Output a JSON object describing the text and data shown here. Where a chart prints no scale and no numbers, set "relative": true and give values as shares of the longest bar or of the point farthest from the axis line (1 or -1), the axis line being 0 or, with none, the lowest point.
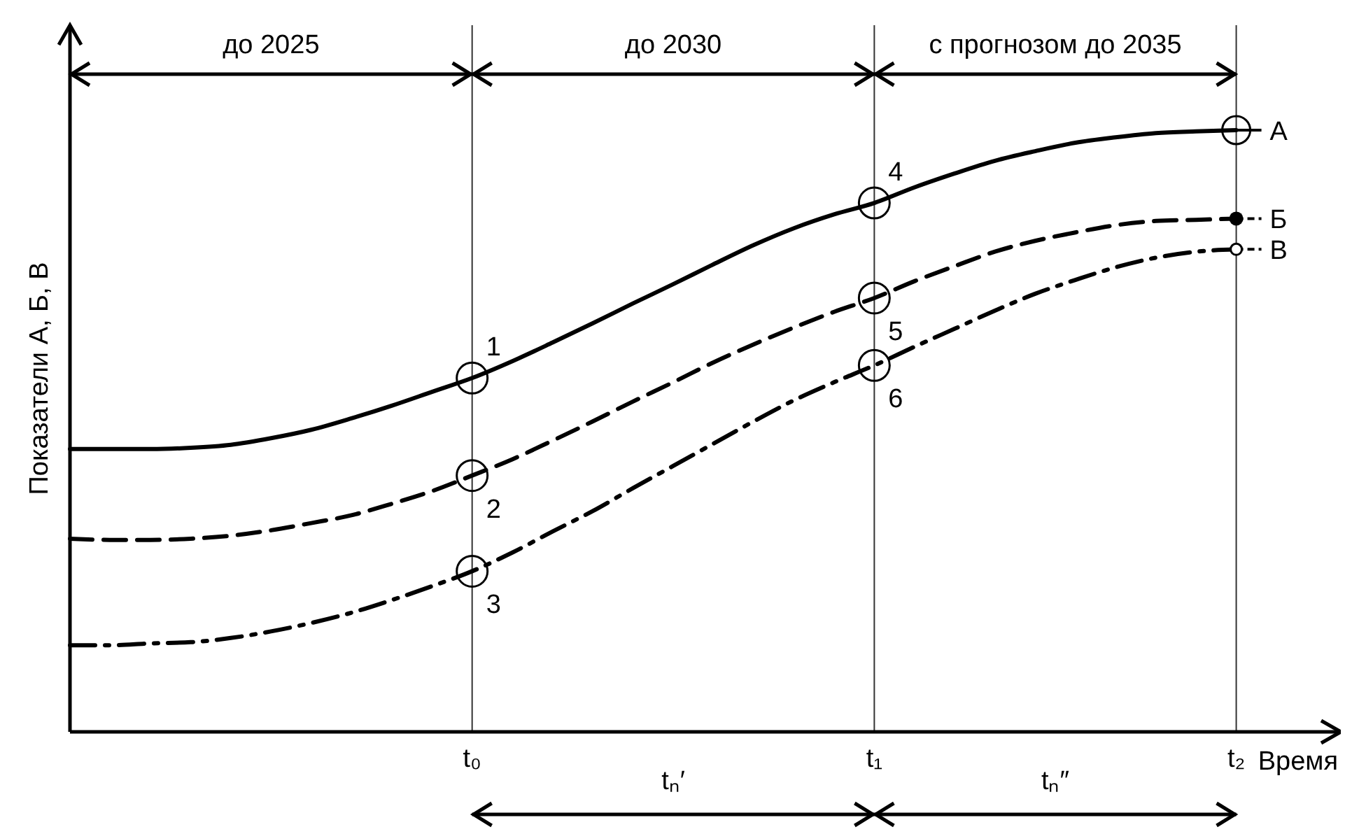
{
  "chart_data": {
    "type": "line",
    "relative": true,
    "legend": "right",
    "xlabel": "Время",
    "ylabel": "Показатели А, Б, В",
    "categories": [
      null,
      null,
      null,
      null,
      null,
      null,
      null,
      null,
      null,
      null,
      "t₀",
      null,
      null,
      null,
      null,
      null,
      null,
      null,
      null,
      null,
      "t₁",
      null,
      null,
      null,
      null,
      null,
      null,
      null,
      null,
      "t₂"
    ],
    "series": [
      {
        "name": "А",
        "color": "#000000",
        "line_style": "solid",
        "values": [
          0.47,
          0.47,
          0.47,
          0.472,
          0.477,
          0.488,
          0.502,
          0.521,
          0.542,
          0.565,
          0.588,
          0.616,
          0.647,
          0.679,
          0.712,
          0.744,
          0.777,
          0.809,
          0.837,
          0.86,
          0.879,
          0.905,
          0.928,
          0.949,
          0.965,
          0.979,
          0.988,
          0.995,
          0.998,
          1
        ]
      },
      {
        "name": "Б",
        "color": "#000000",
        "line_style": "dashed",
        "values": [
          0.321,
          0.319,
          0.319,
          0.321,
          0.326,
          0.335,
          0.347,
          0.36,
          0.379,
          0.4,
          0.426,
          0.453,
          0.484,
          0.516,
          0.549,
          0.581,
          0.614,
          0.644,
          0.672,
          0.698,
          0.721,
          0.749,
          0.774,
          0.798,
          0.816,
          0.83,
          0.842,
          0.849,
          0.851,
          0.853
        ]
      },
      {
        "name": "В",
        "color": "#000000",
        "line_style": "dashdot",
        "values": [
          0.144,
          0.144,
          0.147,
          0.149,
          0.156,
          0.167,
          0.181,
          0.198,
          0.219,
          0.242,
          0.267,
          0.298,
          0.333,
          0.367,
          0.405,
          0.442,
          0.479,
          0.516,
          0.551,
          0.581,
          0.609,
          0.64,
          0.67,
          0.7,
          0.728,
          0.751,
          0.772,
          0.788,
          0.798,
          0.802
        ]
      }
    ],
    "ref_lines": [
      {
        "axis": "x",
        "value": "t₀"
      },
      {
        "axis": "x",
        "value": "t₁"
      },
      {
        "axis": "x",
        "value": "t₂"
      }
    ],
    "annotations": [
      "до 2025",
      "до 2030",
      "с прогнозом до 2035",
      "tₙ′",
      "tₙ″",
      {
        "text": "1",
        "x": "t₀",
        "y": 0.588
      },
      {
        "text": "2",
        "x": "t₀",
        "y": 0.426
      },
      {
        "text": "3",
        "x": "t₀",
        "y": 0.267
      },
      {
        "text": "4",
        "x": "t₁",
        "y": 0.879
      },
      {
        "text": "5",
        "x": "t₁",
        "y": 0.721
      },
      {
        "text": "6",
        "x": "t₁",
        "y": 0.609
      }
    ]
  }
}
